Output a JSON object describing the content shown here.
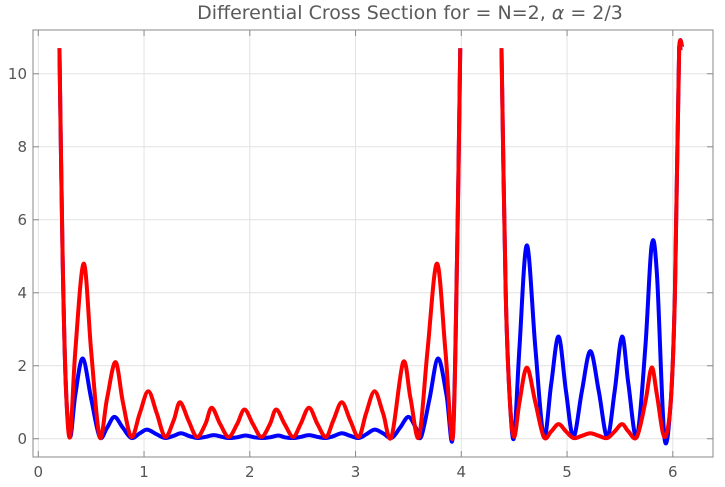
{
  "chart_data": {
    "type": "line",
    "title_prefix": "Differential Cross Section for = N=2, ",
    "title_alpha_symbol": "α",
    "title_suffix": " = 2/3",
    "xlabel": "",
    "ylabel": "",
    "xlim": [
      -0.05,
      6.38
    ],
    "ylim": [
      -0.5,
      11.2
    ],
    "x_ticks": [
      0,
      1,
      2,
      3,
      4,
      5,
      6
    ],
    "y_ticks": [
      0,
      2,
      4,
      6,
      8,
      10
    ],
    "grid": true,
    "legend": "none",
    "series": [
      {
        "color": "#0000ff",
        "segments": [
          {
            "x": [
              0.2,
              0.23,
              0.26,
              0.3,
              0.35,
              0.42,
              0.5,
              0.58,
              0.65,
              0.72,
              0.8,
              0.88,
              0.96,
              1.03,
              1.12,
              1.2,
              1.28,
              1.35,
              1.43,
              1.51,
              1.58,
              1.66,
              1.74,
              1.8,
              1.88,
              1.96,
              2.04,
              2.11,
              2.19,
              2.27,
              2.33,
              2.41,
              2.48,
              2.56,
              2.64,
              2.72,
              2.79,
              2.87,
              2.95,
              3.03,
              3.1,
              3.18,
              3.26,
              3.34,
              3.42,
              3.5,
              3.57,
              3.62,
              3.7,
              3.78,
              3.86,
              3.92,
              3.96,
              3.99
            ],
            "y": [
              10.7,
              5.0,
              1.5,
              0.05,
              1.2,
              2.2,
              1.1,
              0.05,
              0.3,
              0.6,
              0.3,
              0.02,
              0.15,
              0.25,
              0.12,
              0.02,
              0.08,
              0.15,
              0.07,
              0.02,
              0.05,
              0.1,
              0.05,
              0.02,
              0.04,
              0.09,
              0.04,
              0.02,
              0.04,
              0.09,
              0.04,
              0.02,
              0.05,
              0.1,
              0.05,
              0.02,
              0.07,
              0.15,
              0.08,
              0.02,
              0.12,
              0.25,
              0.15,
              0.02,
              0.3,
              0.6,
              0.3,
              0.05,
              1.1,
              2.2,
              1.2,
              0.05,
              5.0,
              10.7
            ]
          },
          {
            "x": [
              4.38,
              4.42,
              4.46,
              4.5,
              4.55,
              4.62,
              4.7,
              4.78,
              4.85,
              4.92,
              4.99,
              5.06,
              5.14,
              5.22,
              5.3,
              5.38,
              5.45,
              5.52,
              5.58,
              5.66,
              5.74,
              5.8,
              5.85,
              5.92,
              5.98,
              6.02,
              6.06,
              6.09
            ],
            "y": [
              10.7,
              4.0,
              1.0,
              0.05,
              2.5,
              5.3,
              2.5,
              0.05,
              1.5,
              2.8,
              1.3,
              0.05,
              1.3,
              2.4,
              1.3,
              0.05,
              1.3,
              2.8,
              1.5,
              0.05,
              2.5,
              5.3,
              4.5,
              0.05,
              1.0,
              4.0,
              10.7,
              10.7
            ]
          }
        ]
      },
      {
        "color": "#ff0000",
        "segments": [
          {
            "x": [
              0.2,
              0.23,
              0.26,
              0.3,
              0.35,
              0.43,
              0.5,
              0.58,
              0.65,
              0.73,
              0.8,
              0.88,
              0.96,
              1.04,
              1.12,
              1.2,
              1.28,
              1.34,
              1.42,
              1.5,
              1.58,
              1.64,
              1.72,
              1.8,
              1.88,
              1.95,
              2.03,
              2.11,
              2.19,
              2.25,
              2.33,
              2.41,
              2.48,
              2.56,
              2.64,
              2.72,
              2.79,
              2.87,
              2.95,
              3.03,
              3.1,
              3.18,
              3.26,
              3.34,
              3.45,
              3.52,
              3.6,
              3.68,
              3.77,
              3.85,
              3.92,
              3.96,
              3.99
            ],
            "y": [
              10.7,
              5.0,
              1.5,
              0.05,
              2.4,
              4.8,
              2.4,
              0.05,
              1.1,
              2.1,
              1.0,
              0.05,
              0.7,
              1.3,
              0.7,
              0.05,
              0.5,
              1.0,
              0.5,
              0.05,
              0.4,
              0.85,
              0.4,
              0.05,
              0.4,
              0.8,
              0.4,
              0.05,
              0.4,
              0.8,
              0.4,
              0.05,
              0.4,
              0.85,
              0.4,
              0.05,
              0.5,
              1.0,
              0.5,
              0.05,
              0.7,
              1.3,
              0.7,
              0.05,
              2.1,
              1.1,
              0.05,
              2.4,
              4.8,
              2.4,
              0.05,
              5.0,
              10.7
            ]
          },
          {
            "x": [
              4.38,
              4.42,
              4.46,
              4.5,
              4.55,
              4.62,
              4.7,
              4.78,
              4.85,
              4.92,
              4.99,
              5.06,
              5.14,
              5.22,
              5.3,
              5.38,
              5.45,
              5.52,
              5.58,
              5.66,
              5.74,
              5.8,
              5.85,
              5.92,
              5.98,
              6.02,
              6.06,
              6.09
            ],
            "y": [
              10.7,
              4.0,
              1.0,
              0.05,
              1.0,
              1.95,
              1.0,
              0.05,
              0.2,
              0.4,
              0.2,
              0.02,
              0.08,
              0.15,
              0.08,
              0.02,
              0.2,
              0.4,
              0.2,
              0.05,
              1.0,
              1.95,
              1.2,
              0.05,
              1.0,
              4.0,
              10.7,
              10.7
            ]
          }
        ]
      }
    ]
  }
}
